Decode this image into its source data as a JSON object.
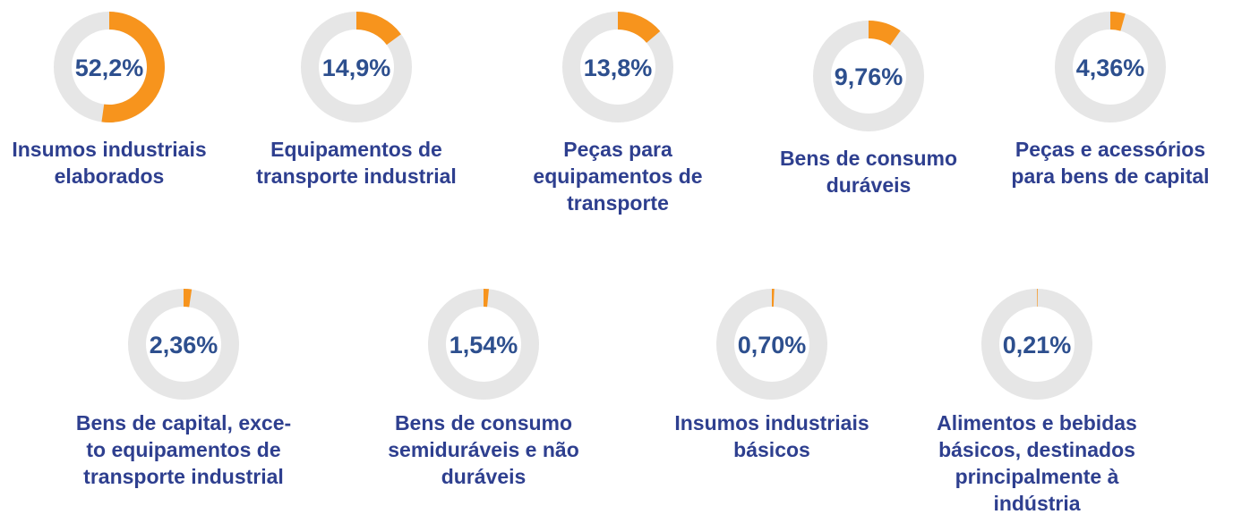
{
  "chart_data": [
    {
      "type": "donut",
      "title": "Insumos industriais\nelaborados",
      "values": [
        52.2
      ],
      "value_labels": [
        "52,2%"
      ],
      "ylim": [
        0,
        100
      ],
      "color": "#f7941d",
      "track_color": "#e6e6e6"
    },
    {
      "type": "donut",
      "title": "Equipamentos de\ntransporte industrial",
      "values": [
        14.9
      ],
      "value_labels": [
        "14,9%"
      ],
      "ylim": [
        0,
        100
      ],
      "color": "#f7941d",
      "track_color": "#e6e6e6"
    },
    {
      "type": "donut",
      "title": "Peças para\nequipamentos de\ntransporte",
      "values": [
        13.8
      ],
      "value_labels": [
        "13,8%"
      ],
      "ylim": [
        0,
        100
      ],
      "color": "#f7941d",
      "track_color": "#e6e6e6"
    },
    {
      "type": "donut",
      "title": "Bens de consumo\nduráveis",
      "values": [
        9.76
      ],
      "value_labels": [
        "9,76%"
      ],
      "ylim": [
        0,
        100
      ],
      "color": "#f7941d",
      "track_color": "#e6e6e6"
    },
    {
      "type": "donut",
      "title": "Peças e acessórios\npara bens de capital",
      "values": [
        4.36
      ],
      "value_labels": [
        "4,36%"
      ],
      "ylim": [
        0,
        100
      ],
      "color": "#f7941d",
      "track_color": "#e6e6e6"
    },
    {
      "type": "donut",
      "title": "Bens de capital, exce-\nto equipamentos de\ntransporte industrial",
      "values": [
        2.36
      ],
      "value_labels": [
        "2,36%"
      ],
      "ylim": [
        0,
        100
      ],
      "color": "#f7941d",
      "track_color": "#e6e6e6"
    },
    {
      "type": "donut",
      "title": "Bens de consumo\nsemiduráveis e não\nduráveis",
      "values": [
        1.54
      ],
      "value_labels": [
        "1,54%"
      ],
      "ylim": [
        0,
        100
      ],
      "color": "#f7941d",
      "track_color": "#e6e6e6"
    },
    {
      "type": "donut",
      "title": "Insumos industriais\nbásicos",
      "values": [
        0.7
      ],
      "value_labels": [
        "0,70%"
      ],
      "ylim": [
        0,
        100
      ],
      "color": "#f7941d",
      "track_color": "#e6e6e6"
    },
    {
      "type": "donut",
      "title": "Alimentos e bebidas\nbásicos, destinados\nprincipalmente à\nindústria",
      "values": [
        0.21
      ],
      "value_labels": [
        "0,21%"
      ],
      "ylim": [
        0,
        100
      ],
      "color": "#f7941d",
      "track_color": "#e6e6e6"
    }
  ]
}
